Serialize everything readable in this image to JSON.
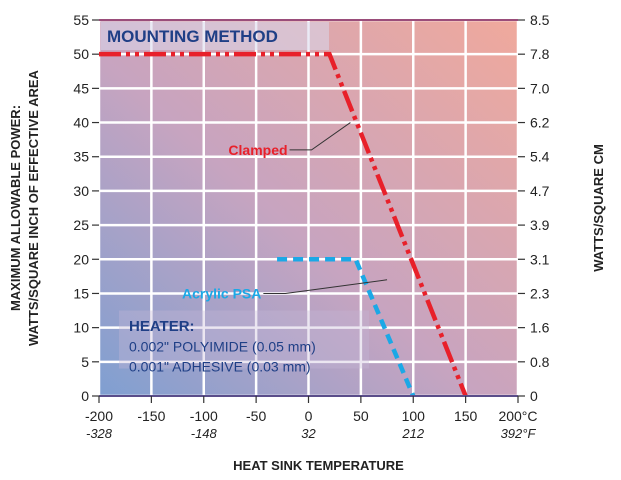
{
  "chart_data": {
    "type": "line",
    "title": "MOUNTING METHOD",
    "xlabel": "HEAT SINK TEMPERATURE",
    "ylabel_left": [
      "MAXIMUM ALLOWABLE POWER:",
      "WATTS/SQUARE INCH OF EFFECTIVE AREA"
    ],
    "ylabel_right": "WATTS/SQUARE CM",
    "xlim": [
      -200,
      200
    ],
    "ylim": [
      0,
      55
    ],
    "x_ticks": [
      {
        "value": -200,
        "c": "-200",
        "f": "-328"
      },
      {
        "value": -150,
        "c": "-150",
        "f": ""
      },
      {
        "value": -100,
        "c": "-100",
        "f": "-148"
      },
      {
        "value": -50,
        "c": "-50",
        "f": ""
      },
      {
        "value": 0,
        "c": "0",
        "f": "32"
      },
      {
        "value": 50,
        "c": "50",
        "f": ""
      },
      {
        "value": 100,
        "c": "100",
        "f": "212"
      },
      {
        "value": 150,
        "c": "150",
        "f": ""
      },
      {
        "value": 200,
        "c": "200°C",
        "f": "392°F"
      }
    ],
    "y_ticks_left": [
      0,
      5,
      10,
      15,
      20,
      25,
      30,
      35,
      40,
      45,
      50,
      55
    ],
    "y_ticks_right": [
      {
        "value": 0,
        "label": "0"
      },
      {
        "value": 5,
        "label": "0.8"
      },
      {
        "value": 10,
        "label": "1.6"
      },
      {
        "value": 15,
        "label": "2.3"
      },
      {
        "value": 20,
        "label": "3.1"
      },
      {
        "value": 25,
        "label": "3.9"
      },
      {
        "value": 30,
        "label": "4.7"
      },
      {
        "value": 35,
        "label": "5.4"
      },
      {
        "value": 40,
        "label": "6.2"
      },
      {
        "value": 45,
        "label": "7.0"
      },
      {
        "value": 50,
        "label": "7.8"
      },
      {
        "value": 55,
        "label": "8.5"
      }
    ],
    "grid": true,
    "series": [
      {
        "name": "Clamped",
        "color": "#e8202a",
        "x": [
          -200,
          20,
          150
        ],
        "y": [
          50,
          50,
          0
        ],
        "label_at": {
          "x": -20,
          "y": 36
        },
        "leader_to": {
          "x": 40,
          "y": 40
        }
      },
      {
        "name": "Acrylic PSA",
        "color": "#1ba8e6",
        "x": [
          -30,
          45,
          100
        ],
        "y": [
          20,
          20,
          0
        ],
        "label_at": {
          "x": -45,
          "y": 15
        },
        "leader_to": {
          "x": 75,
          "y": 17
        }
      }
    ],
    "annotation": {
      "title": "HEATER:",
      "lines": [
        "0.002\" POLYIMIDE (0.05 mm)",
        "0.001\" ADHESIVE (0.03 mm)"
      ]
    }
  }
}
